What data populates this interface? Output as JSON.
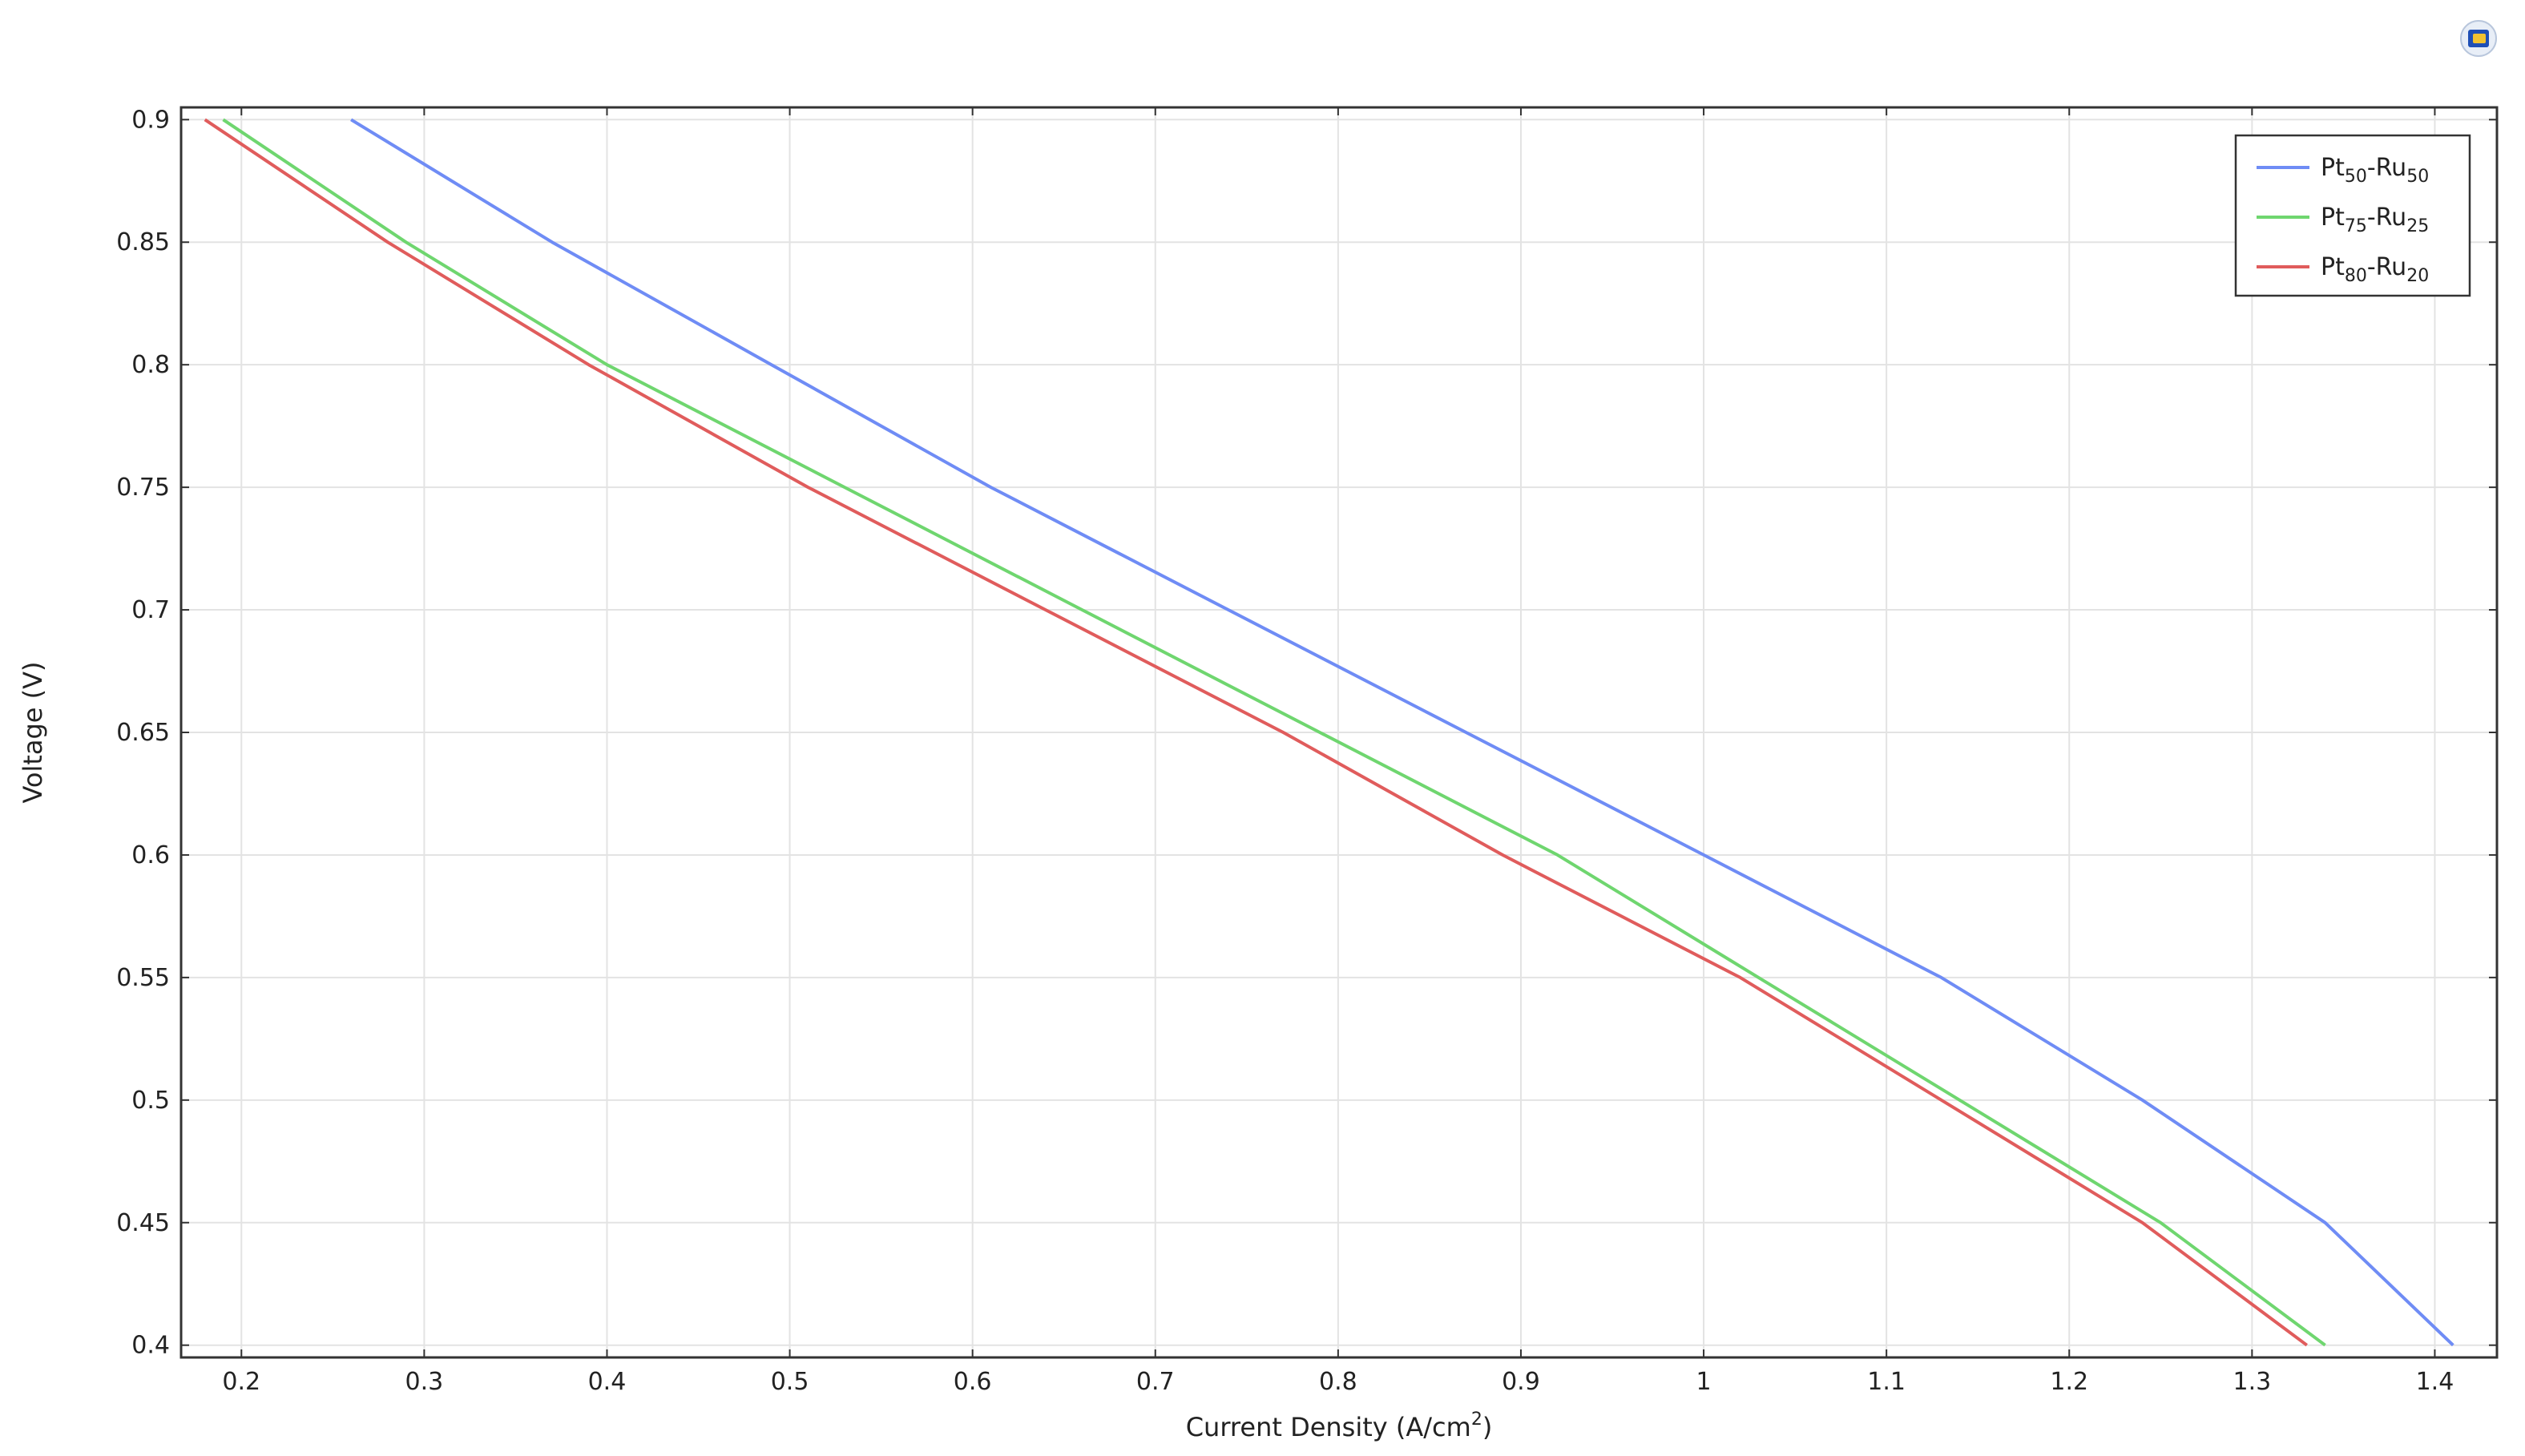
{
  "chart_data": {
    "type": "line",
    "xlabel": "Current Density (A/cm",
    "xlabel_sup": "2",
    "xlabel_end": ")",
    "ylabel": "Voltage (V)",
    "xlim": [
      0.167,
      1.434
    ],
    "ylim": [
      0.395,
      0.905
    ],
    "x_ticks": [
      0.2,
      0.3,
      0.4,
      0.5,
      0.6,
      0.7,
      0.8,
      0.9,
      1,
      1.1,
      1.2,
      1.3,
      1.4
    ],
    "y_ticks": [
      0.4,
      0.45,
      0.5,
      0.55,
      0.6,
      0.65,
      0.7,
      0.75,
      0.8,
      0.85,
      0.9
    ],
    "grid": true,
    "legend_position": "top-right",
    "series": [
      {
        "name": "Pt50-Ru50",
        "label": {
          "a": "Pt",
          "a_sub": "50",
          "b": "-Ru",
          "b_sub": "50"
        },
        "color": "#6f8cf5",
        "x": [
          0.26,
          0.37,
          0.49,
          0.61,
          0.74,
          0.87,
          1.0,
          1.13,
          1.24,
          1.34,
          1.41
        ],
        "y": [
          0.9,
          0.85,
          0.8,
          0.75,
          0.7,
          0.65,
          0.6,
          0.55,
          0.5,
          0.45,
          0.4
        ]
      },
      {
        "name": "Pt75-Ru25",
        "label": {
          "a": "Pt",
          "a_sub": "75",
          "b": "-Ru",
          "b_sub": "25"
        },
        "color": "#6fd66f",
        "x": [
          0.19,
          0.29,
          0.4,
          0.53,
          0.66,
          0.79,
          0.92,
          1.03,
          1.14,
          1.25,
          1.34
        ],
        "y": [
          0.9,
          0.85,
          0.8,
          0.75,
          0.7,
          0.65,
          0.6,
          0.55,
          0.5,
          0.45,
          0.4
        ]
      },
      {
        "name": "Pt80-Ru20",
        "label": {
          "a": "Pt",
          "a_sub": "80",
          "b": "-Ru",
          "b_sub": "20"
        },
        "color": "#e05c5c",
        "x": [
          0.18,
          0.28,
          0.39,
          0.51,
          0.64,
          0.77,
          0.89,
          1.02,
          1.13,
          1.24,
          1.33
        ],
        "y": [
          0.9,
          0.85,
          0.8,
          0.75,
          0.7,
          0.65,
          0.6,
          0.55,
          0.5,
          0.45,
          0.4
        ]
      }
    ]
  },
  "toolbar": {
    "icon": "plot-window-icon"
  }
}
